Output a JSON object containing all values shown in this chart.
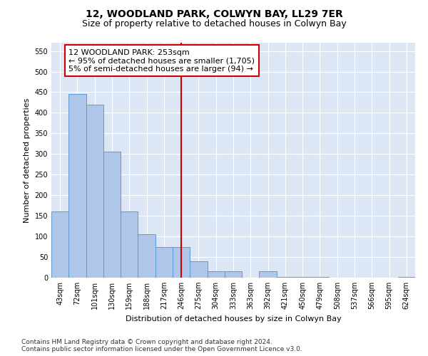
{
  "title": "12, WOODLAND PARK, COLWYN BAY, LL29 7ER",
  "subtitle": "Size of property relative to detached houses in Colwyn Bay",
  "xlabel": "Distribution of detached houses by size in Colwyn Bay",
  "ylabel": "Number of detached properties",
  "categories": [
    "43sqm",
    "72sqm",
    "101sqm",
    "130sqm",
    "159sqm",
    "188sqm",
    "217sqm",
    "246sqm",
    "275sqm",
    "304sqm",
    "333sqm",
    "363sqm",
    "392sqm",
    "421sqm",
    "450sqm",
    "479sqm",
    "508sqm",
    "537sqm",
    "566sqm",
    "595sqm",
    "624sqm"
  ],
  "values": [
    160,
    445,
    420,
    305,
    160,
    105,
    75,
    75,
    40,
    15,
    15,
    0,
    15,
    2,
    2,
    2,
    0,
    0,
    0,
    0,
    2
  ],
  "bar_color": "#aec6e8",
  "bar_edge_color": "#5b9bd5",
  "vline_x_idx": 7,
  "vline_color": "#cc0000",
  "annotation_text": "12 WOODLAND PARK: 253sqm\n← 95% of detached houses are smaller (1,705)\n5% of semi-detached houses are larger (94) →",
  "annotation_box_color": "#ffffff",
  "annotation_box_edge_color": "#cc0000",
  "ylim": [
    0,
    570
  ],
  "yticks": [
    0,
    50,
    100,
    150,
    200,
    250,
    300,
    350,
    400,
    450,
    500,
    550
  ],
  "bg_color": "#dce6f5",
  "footer": "Contains HM Land Registry data © Crown copyright and database right 2024.\nContains public sector information licensed under the Open Government Licence v3.0.",
  "title_fontsize": 10,
  "subtitle_fontsize": 9,
  "axis_label_fontsize": 8,
  "tick_fontsize": 7,
  "annotation_fontsize": 8,
  "footer_fontsize": 6.5
}
